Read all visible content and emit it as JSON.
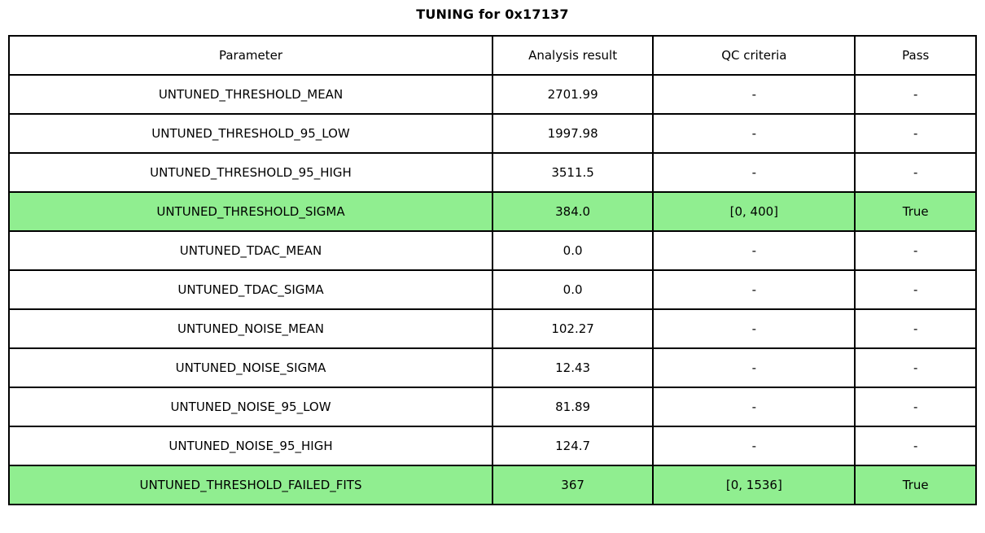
{
  "title": "TUNING for 0x17137",
  "colors": {
    "highlight_green": "#90ee90",
    "border": "#000000",
    "background": "#ffffff"
  },
  "chart_data": {
    "type": "table",
    "title": "TUNING for 0x17137",
    "columns": [
      "Parameter",
      "Analysis result",
      "QC criteria",
      "Pass"
    ],
    "rows": [
      [
        "UNTUNED_THRESHOLD_MEAN",
        "2701.99",
        "-",
        "-"
      ],
      [
        "UNTUNED_THRESHOLD_95_LOW",
        "1997.98",
        "-",
        "-"
      ],
      [
        "UNTUNED_THRESHOLD_95_HIGH",
        "3511.5",
        "-",
        "-"
      ],
      [
        "UNTUNED_THRESHOLD_SIGMA",
        "384.0",
        "[0, 400]",
        "True"
      ],
      [
        "UNTUNED_TDAC_MEAN",
        "0.0",
        "-",
        "-"
      ],
      [
        "UNTUNED_TDAC_SIGMA",
        "0.0",
        "-",
        "-"
      ],
      [
        "UNTUNED_NOISE_MEAN",
        "102.27",
        "-",
        "-"
      ],
      [
        "UNTUNED_NOISE_SIGMA",
        "12.43",
        "-",
        "-"
      ],
      [
        "UNTUNED_NOISE_95_LOW",
        "81.89",
        "-",
        "-"
      ],
      [
        "UNTUNED_NOISE_95_HIGH",
        "124.7",
        "-",
        "-"
      ],
      [
        "UNTUNED_THRESHOLD_FAILED_FITS",
        "367",
        "[0, 1536]",
        "True"
      ]
    ],
    "highlighted_row_indices": [
      3,
      10
    ],
    "highlight_color": "#90ee90",
    "layout": {
      "grid": true,
      "header_row": true,
      "text_align": "center"
    }
  }
}
